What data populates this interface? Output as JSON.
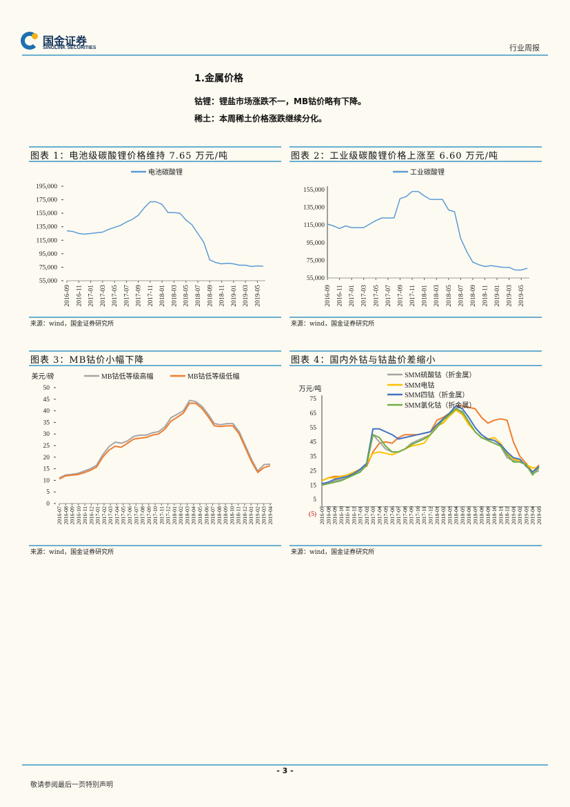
{
  "header": {
    "logo_cn": "国金证券",
    "logo_en": "SINOLINK SECURITIES",
    "report_type": "行业周报"
  },
  "section": {
    "title": "1.金属价格",
    "paragraphs": [
      "钴锂：锂盐市场涨跌不一，MB钴价略有下降。",
      "稀土：本周稀土价格涨跌继续分化。"
    ]
  },
  "source_text": "来源：wind，国金证券研究所",
  "footer": {
    "page_number": "- 3 -",
    "disclaimer": "敬请参阅最后一页特别声明"
  },
  "colors": {
    "rule": "#6aaed0",
    "blue_line": "#5b9bd5",
    "gray": "#a5a5a5",
    "orange": "#ed7d31",
    "yellow": "#ffc000",
    "dark_blue": "#4472c4",
    "green": "#70ad47"
  },
  "chart_data": [
    {
      "type": "line",
      "title": "图表 1：电池级碳酸锂价格维持 7.65 万元/吨",
      "xlabel": "",
      "ylabel": "",
      "ylim": [
        55000,
        195000
      ],
      "yticks": [
        "195,000",
        "175,000",
        "155,000",
        "135,000",
        "115,000",
        "95,000",
        "75,000",
        "55,000"
      ],
      "ytick_values": [
        195000,
        175000,
        155000,
        135000,
        115000,
        95000,
        75000,
        55000
      ],
      "xticks": [
        "2016-09",
        "2016-11",
        "2017-01",
        "2017-03",
        "2017-05",
        "2017-07",
        "2017-09",
        "2017-11",
        "2018-01",
        "2018-03",
        "2018-05",
        "2018-07",
        "2018-09",
        "2018-11",
        "2019-01",
        "2019-03",
        "2019-05"
      ],
      "legend_position": "top-center",
      "x": [
        "2016-09",
        "2016-10",
        "2016-11",
        "2016-12",
        "2017-01",
        "2017-02",
        "2017-03",
        "2017-04",
        "2017-05",
        "2017-06",
        "2017-07",
        "2017-08",
        "2017-09",
        "2017-10",
        "2017-11",
        "2017-12",
        "2018-01",
        "2018-02",
        "2018-03",
        "2018-04",
        "2018-05",
        "2018-06",
        "2018-07",
        "2018-08",
        "2018-09",
        "2018-10",
        "2018-11",
        "2018-12",
        "2019-01",
        "2019-02",
        "2019-03",
        "2019-04",
        "2019-05",
        "2019-06"
      ],
      "series": [
        {
          "name": "电池碳酸锂",
          "color": "#5b9bd5",
          "values": [
            129000,
            128000,
            125000,
            124000,
            125000,
            126000,
            127000,
            131000,
            134000,
            137000,
            142000,
            146000,
            152000,
            163000,
            172000,
            172000,
            168000,
            156000,
            156000,
            155000,
            145000,
            138000,
            125000,
            112000,
            86000,
            82000,
            80000,
            81000,
            80000,
            78000,
            78000,
            76000,
            77000,
            76500
          ]
        }
      ]
    },
    {
      "type": "line",
      "title": "图表 2：工业级碳酸锂价格上涨至 6.60 万元/吨",
      "xlabel": "",
      "ylabel": "",
      "ylim": [
        55000,
        155000
      ],
      "yticks": [
        "155,000",
        "135,000",
        "115,000",
        "95,000",
        "75,000",
        "55,000"
      ],
      "ytick_values": [
        155000,
        135000,
        115000,
        95000,
        75000,
        55000
      ],
      "xticks": [
        "2016-09",
        "2016-11",
        "2017-01",
        "2017-03",
        "2017-05",
        "2017-07",
        "2017-09",
        "2017-11",
        "2018-01",
        "2018-03",
        "2018-05",
        "2018-07",
        "2018-09",
        "2018-11",
        "2019-01",
        "2019-03",
        "2019-05"
      ],
      "legend_position": "top-center",
      "x": [
        "2016-09",
        "2016-10",
        "2016-11",
        "2016-12",
        "2017-01",
        "2017-02",
        "2017-03",
        "2017-04",
        "2017-05",
        "2017-06",
        "2017-07",
        "2017-08",
        "2017-09",
        "2017-10",
        "2017-11",
        "2017-12",
        "2018-01",
        "2018-02",
        "2018-03",
        "2018-04",
        "2018-05",
        "2018-06",
        "2018-07",
        "2018-08",
        "2018-09",
        "2018-10",
        "2018-11",
        "2018-12",
        "2019-01",
        "2019-02",
        "2019-03",
        "2019-04",
        "2019-05",
        "2019-06"
      ],
      "series": [
        {
          "name": "工业碳酸锂",
          "color": "#5b9bd5",
          "values": [
            116000,
            114000,
            111000,
            114000,
            112000,
            112000,
            112000,
            116000,
            120000,
            123000,
            123000,
            123000,
            145000,
            147000,
            153000,
            153000,
            148000,
            144000,
            144000,
            144000,
            132000,
            130000,
            100000,
            85000,
            73000,
            70000,
            68000,
            69000,
            68000,
            67000,
            67000,
            64000,
            64000,
            66000
          ]
        }
      ]
    },
    {
      "type": "line",
      "title": "图表 3：MB钴价小幅下降",
      "xlabel": "",
      "ylabel": "美元/磅",
      "ylim": [
        0,
        50
      ],
      "yticks": [
        "50",
        "45",
        "40",
        "35",
        "30",
        "25",
        "20",
        "15",
        "10",
        "5",
        "0"
      ],
      "ytick_values": [
        50,
        45,
        40,
        35,
        30,
        25,
        20,
        15,
        10,
        5,
        0
      ],
      "xticks": [
        "2016-07",
        "2016-08",
        "2016-09",
        "2016-10",
        "2016-11",
        "2016-12",
        "2017-01",
        "2017-02",
        "2017-03",
        "2017-04",
        "2017-05",
        "2017-06",
        "2017-07",
        "2017-08",
        "2017-09",
        "2017-10",
        "2017-11",
        "2017-12",
        "2018-01",
        "2018-02",
        "2018-03",
        "2018-04",
        "2018-05",
        "2018-06",
        "2018-07",
        "2018-08",
        "2018-09",
        "2018-10",
        "2018-11",
        "2018-12",
        "2019-01",
        "2019-02",
        "2019-03",
        "2019-04"
      ],
      "legend_position": "top",
      "series": [
        {
          "name": "MB钴低等级高幅",
          "color": "#a5a5a5",
          "values": [
            11,
            12.3,
            12.6,
            13,
            14,
            15,
            16.5,
            21,
            24.5,
            26.5,
            26,
            27,
            29,
            29.5,
            29.5,
            30.5,
            31,
            33,
            37,
            38.5,
            40,
            44.5,
            44,
            42,
            38.5,
            34.5,
            34,
            34.5,
            34.5,
            31,
            25,
            19,
            14,
            16.8,
            17
          ]
        },
        {
          "name": "MB钴低等级低幅",
          "color": "#ed7d31",
          "values": [
            10.6,
            11.9,
            12.2,
            12.5,
            13.3,
            14.3,
            15.7,
            20,
            23,
            24.7,
            24.3,
            26,
            27.8,
            28.2,
            28.5,
            29.5,
            30,
            32,
            35.5,
            37.2,
            39,
            43.3,
            43.2,
            41,
            37.5,
            33.5,
            33.2,
            33.5,
            33.5,
            30,
            24,
            18,
            13.4,
            15.5,
            16.3
          ]
        }
      ]
    },
    {
      "type": "line",
      "title": "图表 4：国内外钴与钴盐价差缩小",
      "xlabel": "",
      "ylabel": "万元/吨",
      "ylim": [
        -5,
        75
      ],
      "yticks": [
        "75",
        "65",
        "55",
        "45",
        "35",
        "25",
        "15",
        "5",
        "(5)"
      ],
      "ytick_values": [
        75,
        65,
        55,
        45,
        35,
        25,
        15,
        5,
        -5
      ],
      "xticks": [
        "2016-07",
        "2016-08",
        "2016-09",
        "2016-10",
        "2016-11",
        "2016-12",
        "2017-01",
        "2017-02",
        "2017-03",
        "2017-04",
        "2017-05",
        "2017-06",
        "2017-07",
        "2017-08",
        "2017-09",
        "2017-10",
        "2017-11",
        "2017-12",
        "2018-01",
        "2018-02",
        "2018-03",
        "2018-04",
        "2018-05",
        "2018-06",
        "2018-07",
        "2018-08",
        "2018-09",
        "2018-10",
        "2018-11",
        "2018-12",
        "2019-01",
        "2019-02",
        "2019-03",
        "2019-04",
        "2019-05"
      ],
      "legend_position": "top-right",
      "series": [
        {
          "name": "",
          "color": "#ed7d31",
          "values": [
            18,
            20,
            21,
            21,
            22,
            24,
            26,
            28,
            38,
            44,
            45,
            44,
            48,
            50,
            50,
            50,
            51,
            52,
            60,
            62,
            65,
            70,
            70,
            69,
            68,
            62,
            58,
            60,
            61,
            60,
            45,
            35,
            30,
            24,
            29
          ]
        },
        {
          "name": "SMM硫酸钴（折金属）",
          "color": "#a5a5a5",
          "values": [
            15,
            16,
            18,
            19,
            20,
            22,
            25,
            29,
            50,
            45,
            40,
            38,
            38,
            40,
            44,
            46,
            48,
            50,
            56,
            60,
            64,
            68,
            65,
            58,
            52,
            48,
            46,
            44,
            42,
            34,
            32,
            32,
            29,
            23,
            25
          ]
        },
        {
          "name": "SMM电钴",
          "color": "#ffc000",
          "values": [
            18,
            20,
            20,
            21,
            22,
            24,
            26,
            30,
            37,
            38,
            37,
            36,
            38,
            40,
            42,
            43,
            44,
            50,
            56,
            58,
            63,
            67,
            64,
            57,
            52,
            48,
            47,
            48,
            44,
            37,
            33,
            32,
            29,
            27,
            27
          ]
        },
        {
          "name": "SMM四钴（折金属）",
          "color": "#4472c4",
          "values": [
            16,
            17,
            19,
            20,
            21,
            23,
            26,
            30,
            54,
            54,
            52,
            50,
            47,
            48,
            49,
            50,
            51,
            52,
            57,
            61,
            65,
            70,
            68,
            62,
            55,
            50,
            47,
            46,
            43,
            38,
            34,
            33,
            28,
            24,
            28
          ]
        },
        {
          "name": "SMM氯化钴（折金属）",
          "color": "#70ad47",
          "values": [
            15,
            16,
            17,
            18,
            20,
            22,
            24,
            29,
            50,
            48,
            42,
            38,
            38,
            40,
            43,
            45,
            47,
            50,
            55,
            60,
            64,
            68,
            66,
            59,
            52,
            48,
            46,
            44,
            42,
            36,
            31,
            31,
            29,
            22,
            27
          ]
        }
      ]
    }
  ]
}
